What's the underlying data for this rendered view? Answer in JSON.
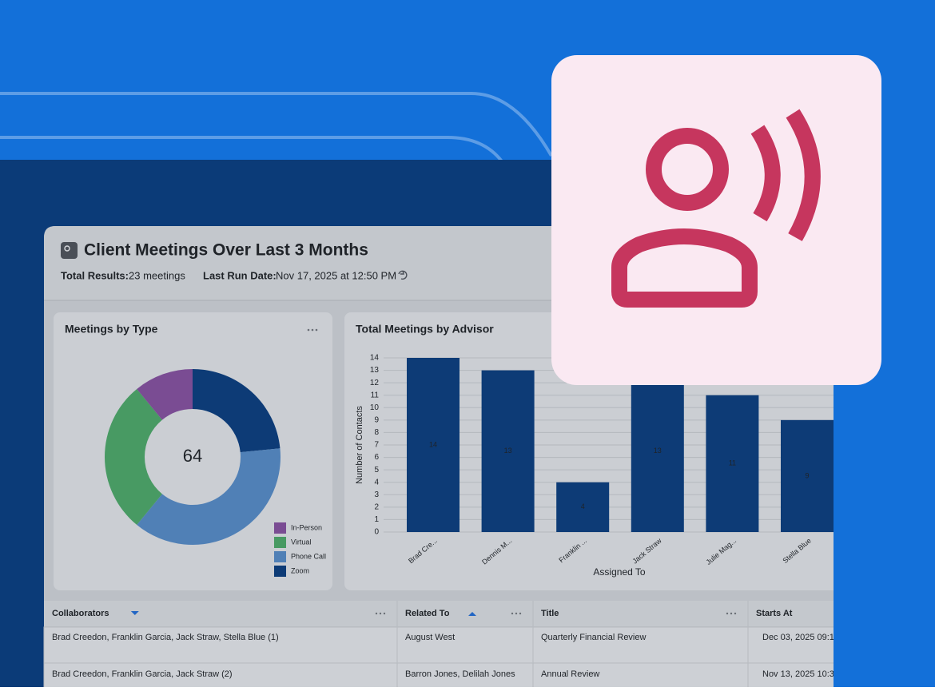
{
  "header": {
    "title": "Client Meetings Over Last 3 Months",
    "total_results_label": "Total Results:",
    "total_results": "23 meetings",
    "last_run_label": "Last Run Date:",
    "last_run": "Nov 17, 2025 at 12:50 PM"
  },
  "chart_data": [
    {
      "type": "donut",
      "title": "Meetings by Type",
      "center_label": 64,
      "categories": [
        "In-Person",
        "Virtual",
        "Phone Call",
        "Zoom"
      ],
      "values": [
        7,
        18,
        24,
        15
      ],
      "colors": [
        "#7a4c93",
        "#489a63",
        "#5080b6",
        "#0d3b76"
      ]
    },
    {
      "type": "bar",
      "title": "Total Meetings by Advisor",
      "categories": [
        "Brad Cre...",
        "Dennis M...",
        "Franklin ...",
        "Jack Straw",
        "Julie Mag...",
        "Stella Blue"
      ],
      "values": [
        14,
        13,
        4,
        13,
        11,
        9
      ],
      "color": "#0d3b76",
      "ylim": [
        0,
        14
      ],
      "yticks": [
        0,
        1,
        2,
        3,
        4,
        5,
        6,
        7,
        8,
        9,
        10,
        11,
        12,
        13,
        14
      ],
      "grid": true,
      "xlabel": "Assigned To",
      "ylabel": "Number of Contacts"
    }
  ],
  "table": {
    "columns": [
      {
        "name": "Collaborators",
        "sort": "desc"
      },
      {
        "name": "Related To",
        "sort": "asc"
      },
      {
        "name": "Title",
        "sort": null
      },
      {
        "name": "Starts At",
        "sort": null
      }
    ],
    "rows": [
      [
        "Brad Creedon, Franklin Garcia, Jack Straw, Stella Blue (1)",
        "August West",
        "Quarterly Financial Review",
        "Dec 03, 2025 09:1"
      ],
      [
        "Brad Creedon, Franklin Garcia, Jack Straw (2)",
        "Barron Jones, Delilah Jones",
        "Annual Review",
        "Nov 13, 2025 10:3"
      ]
    ]
  }
}
